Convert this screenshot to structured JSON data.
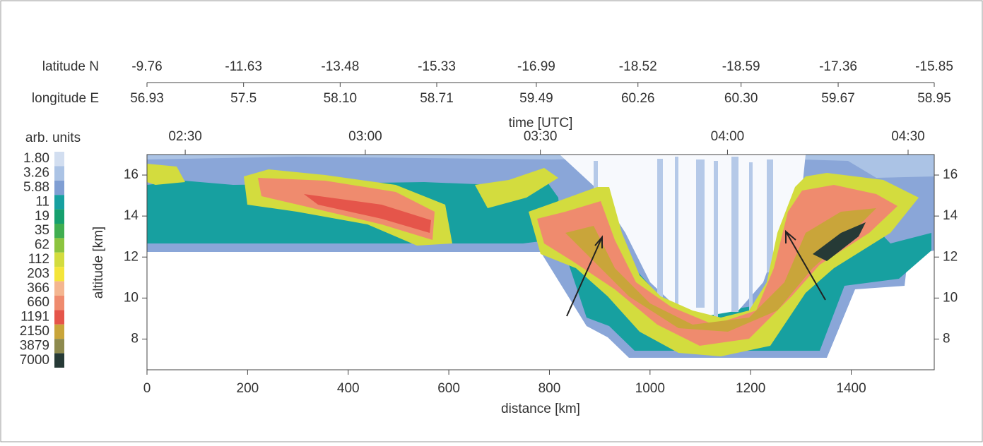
{
  "chart_data": {
    "type": "curtain",
    "xlabel": "distance [km]",
    "ylabel": "altitude [km]",
    "xlim": [
      0,
      1565
    ],
    "ylim": [
      6.5,
      17
    ],
    "xticks": [
      0,
      200,
      400,
      600,
      800,
      1000,
      1200,
      1400
    ],
    "yticks": [
      8,
      10,
      12,
      14,
      16
    ],
    "latitude_label": "latitude N",
    "longitude_label": "longitude E",
    "geo_positions": [
      0,
      192,
      384,
      576,
      774,
      976,
      1181,
      1374,
      1565
    ],
    "latitudes": [
      -9.76,
      -11.63,
      -13.48,
      -15.33,
      -16.99,
      -18.52,
      -18.59,
      -17.36,
      -15.85
    ],
    "longitudes": [
      56.93,
      57.5,
      {
        "value": 58.1,
        "label": "58.10"
      },
      58.71,
      59.49,
      60.26,
      {
        "value": 60.3,
        "label": "60.30"
      },
      59.67,
      58.95
    ],
    "time_label": "time [UTC]",
    "time_ticks": [
      {
        "value": 76,
        "label": "02:30"
      },
      {
        "value": 434,
        "label": "03:00"
      },
      {
        "value": 782,
        "label": "03:30"
      },
      {
        "value": 1154,
        "label": "04:00"
      },
      {
        "value": 1513,
        "label": "04:30"
      }
    ],
    "colorbar_label": "arb. units",
    "colorbar": [
      {
        "value": 1.8,
        "label": "1.80"
      },
      3.26,
      5.88,
      11,
      19,
      35,
      62,
      112,
      203,
      366,
      660,
      1191,
      2150,
      3879,
      7000
    ],
    "colors": [
      "#d2def0",
      "#abc3e5",
      "#7f9ed3",
      "#17a0a0",
      "#16a06e",
      "#40ae50",
      "#8cc43f",
      "#d3dc3e",
      "#f4e53a",
      "#f4b690",
      "#ef8b6e",
      "#e5554a",
      "#c9a53a",
      "#8d8a4e",
      "#263a36"
    ]
  }
}
